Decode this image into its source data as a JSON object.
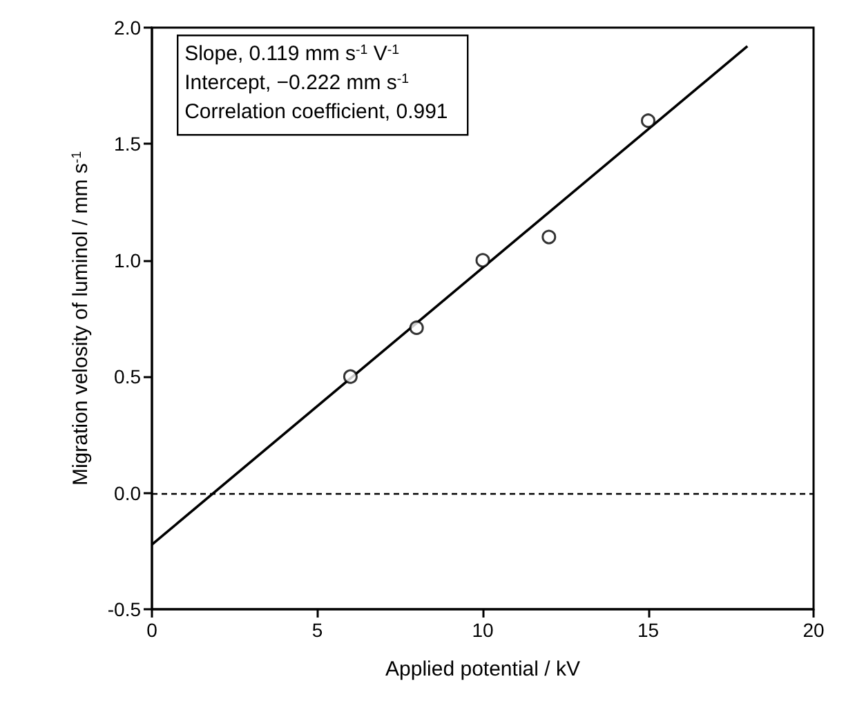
{
  "chart_data": {
    "type": "scatter",
    "xlabel": "Applied potential / kV",
    "ylabel": "Migration velosity of luminol / mm s$^{-1}$",
    "xlim": [
      0,
      20
    ],
    "xticks": [
      0,
      5,
      10,
      15,
      20
    ],
    "ylim": [
      -0.5,
      2.0
    ],
    "yticks": [
      {
        "value": -0.5,
        "label": "-0.5"
      },
      {
        "value": 0,
        "label": "0.0"
      },
      {
        "value": 0.5,
        "label": "0.5"
      },
      {
        "value": 1,
        "label": "1.0"
      },
      {
        "value": 1.5,
        "label": "1.5"
      },
      {
        "value": 2,
        "label": "2.0"
      }
    ],
    "grid": false,
    "series": [
      {
        "x": [
          6,
          8,
          10,
          12,
          15
        ],
        "values": [
          0.5,
          0.71,
          1.0,
          1.1,
          1.6
        ],
        "color": "#000000",
        "marker": "circle"
      },
      {
        "type": "line",
        "x": [
          0,
          18
        ],
        "values": [
          -0.222,
          1.92
        ],
        "color": "#000000",
        "marker": "none",
        "line_style": "solid"
      }
    ],
    "ref_lines": [
      {
        "axis": "y",
        "value": 0,
        "color": "#000000",
        "line_style": "dashed"
      }
    ],
    "annotations": [
      "Slope, 0.119 mm s$^{-1}$ V$^{-1}$",
      "Intercept, −0.222 mm s$^{-1}$",
      "Correlation coefficient, 0.991"
    ]
  }
}
